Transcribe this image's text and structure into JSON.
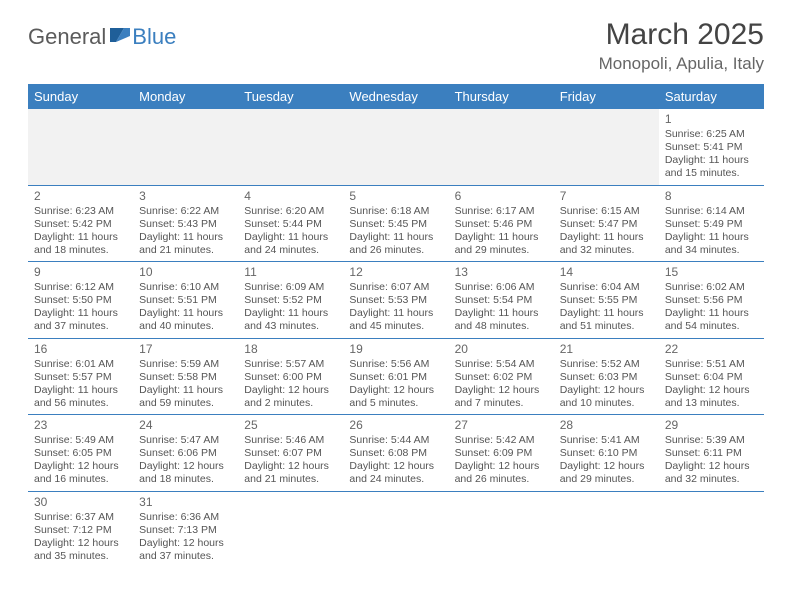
{
  "brand": {
    "part1": "General",
    "part2": "Blue"
  },
  "title": "March 2025",
  "location": "Monopoli, Apulia, Italy",
  "colors": {
    "accent": "#3b7fbf",
    "text": "#555555",
    "headerText": "#ffffff",
    "emptyBg": "#f2f2f2"
  },
  "weekdays": [
    "Sunday",
    "Monday",
    "Tuesday",
    "Wednesday",
    "Thursday",
    "Friday",
    "Saturday"
  ],
  "weeks": [
    [
      null,
      null,
      null,
      null,
      null,
      null,
      {
        "n": "1",
        "sr": "Sunrise: 6:25 AM",
        "ss": "Sunset: 5:41 PM",
        "dl1": "Daylight: 11 hours",
        "dl2": "and 15 minutes."
      }
    ],
    [
      {
        "n": "2",
        "sr": "Sunrise: 6:23 AM",
        "ss": "Sunset: 5:42 PM",
        "dl1": "Daylight: 11 hours",
        "dl2": "and 18 minutes."
      },
      {
        "n": "3",
        "sr": "Sunrise: 6:22 AM",
        "ss": "Sunset: 5:43 PM",
        "dl1": "Daylight: 11 hours",
        "dl2": "and 21 minutes."
      },
      {
        "n": "4",
        "sr": "Sunrise: 6:20 AM",
        "ss": "Sunset: 5:44 PM",
        "dl1": "Daylight: 11 hours",
        "dl2": "and 24 minutes."
      },
      {
        "n": "5",
        "sr": "Sunrise: 6:18 AM",
        "ss": "Sunset: 5:45 PM",
        "dl1": "Daylight: 11 hours",
        "dl2": "and 26 minutes."
      },
      {
        "n": "6",
        "sr": "Sunrise: 6:17 AM",
        "ss": "Sunset: 5:46 PM",
        "dl1": "Daylight: 11 hours",
        "dl2": "and 29 minutes."
      },
      {
        "n": "7",
        "sr": "Sunrise: 6:15 AM",
        "ss": "Sunset: 5:47 PM",
        "dl1": "Daylight: 11 hours",
        "dl2": "and 32 minutes."
      },
      {
        "n": "8",
        "sr": "Sunrise: 6:14 AM",
        "ss": "Sunset: 5:49 PM",
        "dl1": "Daylight: 11 hours",
        "dl2": "and 34 minutes."
      }
    ],
    [
      {
        "n": "9",
        "sr": "Sunrise: 6:12 AM",
        "ss": "Sunset: 5:50 PM",
        "dl1": "Daylight: 11 hours",
        "dl2": "and 37 minutes."
      },
      {
        "n": "10",
        "sr": "Sunrise: 6:10 AM",
        "ss": "Sunset: 5:51 PM",
        "dl1": "Daylight: 11 hours",
        "dl2": "and 40 minutes."
      },
      {
        "n": "11",
        "sr": "Sunrise: 6:09 AM",
        "ss": "Sunset: 5:52 PM",
        "dl1": "Daylight: 11 hours",
        "dl2": "and 43 minutes."
      },
      {
        "n": "12",
        "sr": "Sunrise: 6:07 AM",
        "ss": "Sunset: 5:53 PM",
        "dl1": "Daylight: 11 hours",
        "dl2": "and 45 minutes."
      },
      {
        "n": "13",
        "sr": "Sunrise: 6:06 AM",
        "ss": "Sunset: 5:54 PM",
        "dl1": "Daylight: 11 hours",
        "dl2": "and 48 minutes."
      },
      {
        "n": "14",
        "sr": "Sunrise: 6:04 AM",
        "ss": "Sunset: 5:55 PM",
        "dl1": "Daylight: 11 hours",
        "dl2": "and 51 minutes."
      },
      {
        "n": "15",
        "sr": "Sunrise: 6:02 AM",
        "ss": "Sunset: 5:56 PM",
        "dl1": "Daylight: 11 hours",
        "dl2": "and 54 minutes."
      }
    ],
    [
      {
        "n": "16",
        "sr": "Sunrise: 6:01 AM",
        "ss": "Sunset: 5:57 PM",
        "dl1": "Daylight: 11 hours",
        "dl2": "and 56 minutes."
      },
      {
        "n": "17",
        "sr": "Sunrise: 5:59 AM",
        "ss": "Sunset: 5:58 PM",
        "dl1": "Daylight: 11 hours",
        "dl2": "and 59 minutes."
      },
      {
        "n": "18",
        "sr": "Sunrise: 5:57 AM",
        "ss": "Sunset: 6:00 PM",
        "dl1": "Daylight: 12 hours",
        "dl2": "and 2 minutes."
      },
      {
        "n": "19",
        "sr": "Sunrise: 5:56 AM",
        "ss": "Sunset: 6:01 PM",
        "dl1": "Daylight: 12 hours",
        "dl2": "and 5 minutes."
      },
      {
        "n": "20",
        "sr": "Sunrise: 5:54 AM",
        "ss": "Sunset: 6:02 PM",
        "dl1": "Daylight: 12 hours",
        "dl2": "and 7 minutes."
      },
      {
        "n": "21",
        "sr": "Sunrise: 5:52 AM",
        "ss": "Sunset: 6:03 PM",
        "dl1": "Daylight: 12 hours",
        "dl2": "and 10 minutes."
      },
      {
        "n": "22",
        "sr": "Sunrise: 5:51 AM",
        "ss": "Sunset: 6:04 PM",
        "dl1": "Daylight: 12 hours",
        "dl2": "and 13 minutes."
      }
    ],
    [
      {
        "n": "23",
        "sr": "Sunrise: 5:49 AM",
        "ss": "Sunset: 6:05 PM",
        "dl1": "Daylight: 12 hours",
        "dl2": "and 16 minutes."
      },
      {
        "n": "24",
        "sr": "Sunrise: 5:47 AM",
        "ss": "Sunset: 6:06 PM",
        "dl1": "Daylight: 12 hours",
        "dl2": "and 18 minutes."
      },
      {
        "n": "25",
        "sr": "Sunrise: 5:46 AM",
        "ss": "Sunset: 6:07 PM",
        "dl1": "Daylight: 12 hours",
        "dl2": "and 21 minutes."
      },
      {
        "n": "26",
        "sr": "Sunrise: 5:44 AM",
        "ss": "Sunset: 6:08 PM",
        "dl1": "Daylight: 12 hours",
        "dl2": "and 24 minutes."
      },
      {
        "n": "27",
        "sr": "Sunrise: 5:42 AM",
        "ss": "Sunset: 6:09 PM",
        "dl1": "Daylight: 12 hours",
        "dl2": "and 26 minutes."
      },
      {
        "n": "28",
        "sr": "Sunrise: 5:41 AM",
        "ss": "Sunset: 6:10 PM",
        "dl1": "Daylight: 12 hours",
        "dl2": "and 29 minutes."
      },
      {
        "n": "29",
        "sr": "Sunrise: 5:39 AM",
        "ss": "Sunset: 6:11 PM",
        "dl1": "Daylight: 12 hours",
        "dl2": "and 32 minutes."
      }
    ],
    [
      {
        "n": "30",
        "sr": "Sunrise: 6:37 AM",
        "ss": "Sunset: 7:12 PM",
        "dl1": "Daylight: 12 hours",
        "dl2": "and 35 minutes."
      },
      {
        "n": "31",
        "sr": "Sunrise: 6:36 AM",
        "ss": "Sunset: 7:13 PM",
        "dl1": "Daylight: 12 hours",
        "dl2": "and 37 minutes."
      },
      null,
      null,
      null,
      null,
      null
    ]
  ]
}
